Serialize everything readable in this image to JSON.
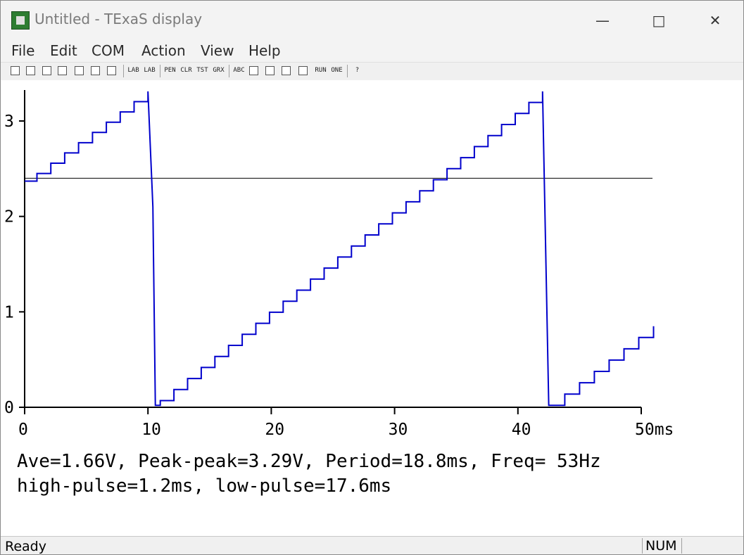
{
  "window": {
    "title": "Untitled - TExaS display",
    "minimize_icon": "minimize-icon",
    "maximize_icon": "maximize-icon",
    "close_icon": "close-icon"
  },
  "menu": [
    "File",
    "Edit",
    "COM",
    "Action",
    "View",
    "Help"
  ],
  "toolbar": {
    "icons": [
      "new-icon",
      "open-icon",
      "save-icon",
      "print-icon",
      "cut-icon",
      "copy-icon",
      "paste-icon",
      "lab-step-icon",
      "lab-11-icon",
      "pen-icon",
      "clr-icon",
      "test-icon",
      "grx-icon",
      "abc-def-icon",
      "scope-icon",
      "line-icon",
      "histogram-icon",
      "grid-icon",
      "run-stop-icon",
      "one-icon",
      "help-icon"
    ],
    "labels": [
      "",
      "",
      "",
      "",
      "",
      "",
      "",
      "LAB",
      "LAB",
      "PEN",
      "CLR",
      "TST",
      "GRX",
      "ABC",
      "",
      "",
      "",
      "",
      "RUN",
      "ONE",
      "?"
    ]
  },
  "chart_data": {
    "type": "line",
    "x_unit": "ms",
    "xlim": [
      0,
      50
    ],
    "ylim": [
      0,
      3.3
    ],
    "x_ticks": [
      "0",
      "10",
      "20",
      "30",
      "40",
      "50ms"
    ],
    "y_ticks": [
      "0",
      "1",
      "2",
      "3"
    ],
    "trigger_level": 2.4,
    "series": [
      {
        "color": "#0000cc",
        "x": [
          0,
          1.0,
          1.0,
          10.0,
          10.0,
          10.4,
          10.6,
          11.0,
          11.0,
          42.0,
          42.0,
          42.5,
          42.6,
          51.0
        ],
        "y": [
          2.37,
          2.37,
          2.45,
          3.31,
          3.31,
          2.1,
          0.02,
          0.02,
          0.07,
          3.31,
          3.31,
          0.02,
          0.02,
          0.85
        ]
      }
    ]
  },
  "measurements": {
    "line1": "Ave=1.66V, Peak-peak=3.29V, Period=18.8ms, Freq= 53Hz",
    "line2": "high-pulse=1.2ms, low-pulse=17.6ms"
  },
  "status": {
    "ready": "Ready",
    "num": "NUM"
  }
}
